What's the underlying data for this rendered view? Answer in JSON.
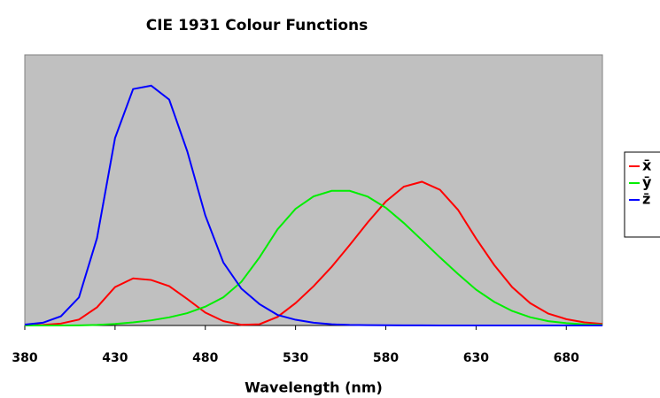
{
  "chart_data": {
    "type": "line",
    "title": "CIE 1931 Colour Functions",
    "x_label": "Wavelength (nm)",
    "x": [
      380,
      390,
      400,
      410,
      420,
      430,
      440,
      450,
      460,
      470,
      480,
      490,
      500,
      510,
      520,
      530,
      540,
      550,
      560,
      570,
      580,
      590,
      600,
      610,
      620,
      630,
      640,
      650,
      660,
      670,
      680,
      690,
      700
    ],
    "series": [
      {
        "name": "x̄",
        "color": "#ff0000",
        "values": [
          0.0014,
          0.0042,
          0.0143,
          0.0435,
          0.1344,
          0.2839,
          0.3483,
          0.3362,
          0.2908,
          0.1954,
          0.0956,
          0.032,
          0.0049,
          0.0093,
          0.0633,
          0.1655,
          0.2904,
          0.4334,
          0.5945,
          0.7621,
          0.9163,
          1.0263,
          1.0622,
          1.0026,
          0.8544,
          0.6424,
          0.4479,
          0.2835,
          0.1649,
          0.0874,
          0.0468,
          0.0227,
          0.0114
        ]
      },
      {
        "name": "ȳ",
        "color": "#00ee00",
        "values": [
          0,
          0.0001,
          0.0004,
          0.0012,
          0.004,
          0.0116,
          0.023,
          0.038,
          0.06,
          0.091,
          0.139,
          0.208,
          0.323,
          0.503,
          0.71,
          0.862,
          0.954,
          0.995,
          0.995,
          0.952,
          0.87,
          0.757,
          0.631,
          0.503,
          0.381,
          0.265,
          0.175,
          0.107,
          0.061,
          0.032,
          0.017,
          0.0082,
          0.0041
        ]
      },
      {
        "name": "z̄",
        "color": "#0000ff",
        "values": [
          0.0065,
          0.0201,
          0.0679,
          0.2074,
          0.6456,
          1.3856,
          1.7471,
          1.7721,
          1.6692,
          1.2876,
          0.813,
          0.4652,
          0.272,
          0.1582,
          0.0782,
          0.0422,
          0.0203,
          0.0087,
          0.0039,
          0.0021,
          0.0017,
          0.0011,
          0.0008,
          0.0003,
          0.0002,
          0,
          0,
          0,
          0,
          0,
          0,
          0,
          0
        ]
      }
    ],
    "xlim": [
      380,
      700
    ],
    "xticks": [
      380,
      430,
      480,
      530,
      580,
      630,
      680
    ],
    "ylim": [
      0,
      2
    ],
    "grid": false,
    "legend": "right"
  }
}
